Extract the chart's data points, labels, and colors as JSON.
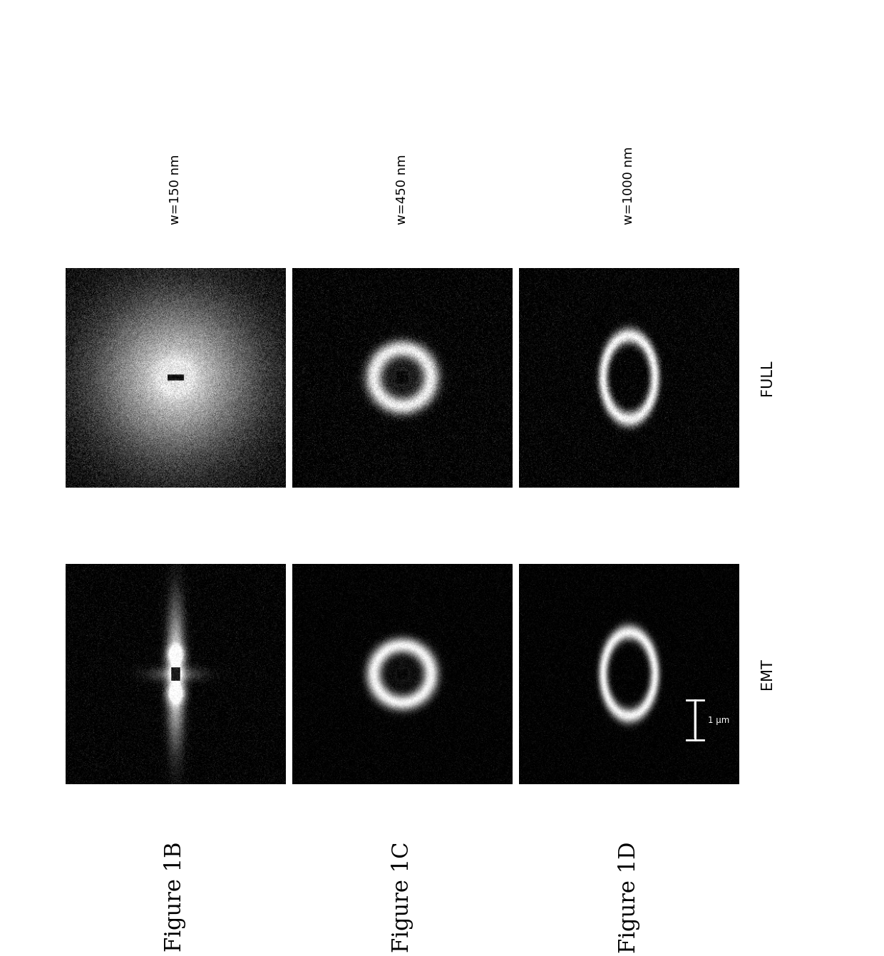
{
  "background_color": "#ffffff",
  "fig_width": 12.4,
  "fig_height": 13.41,
  "labels_row": [
    "w=150 nm",
    "w=450 nm",
    "w=1000 nm"
  ],
  "labels_col": [
    "FULL",
    "EMT"
  ],
  "figure_labels": [
    "Figure 1B",
    "Figure 1C",
    "Figure 1D"
  ],
  "scale_bar_text": "1 μm",
  "noise_level": 0.055,
  "base_gray": 0.3,
  "img_bg_gray": 0.3
}
